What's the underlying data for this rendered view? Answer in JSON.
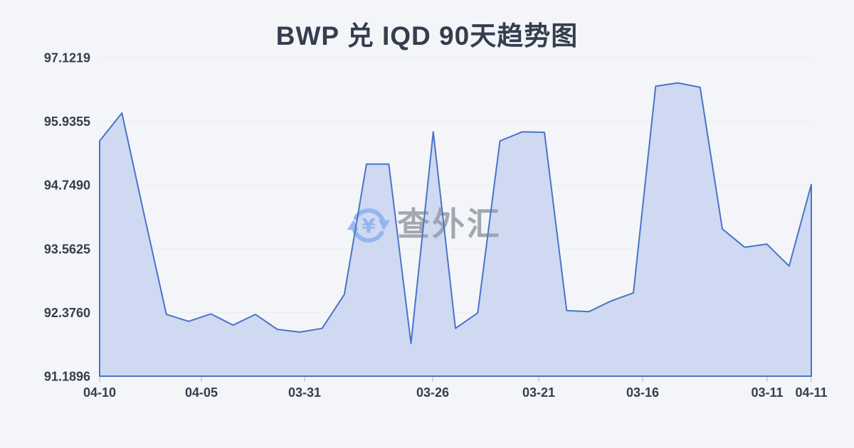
{
  "page": {
    "background": "#f4f5f8",
    "text_color": "#343e4e"
  },
  "header": {
    "title": "BWP 兑 IQD 90天趋势图"
  },
  "watermark": {
    "text": "查外汇",
    "icon": "currency-exchange-refresh-yen-icon",
    "icon_color": "#92b3ee",
    "text_color": "#9aa0aa",
    "yen_symbol": "¥"
  },
  "chart_data": {
    "type": "area",
    "title": "BWP 兑 IQD 90天趋势图",
    "xlabel": "",
    "ylabel": "",
    "grid": true,
    "legend": "none",
    "ylim": [
      91.1896,
      97.1219
    ],
    "y_ticks": [
      "97.1219",
      "95.9355",
      "94.7490",
      "93.5625",
      "92.3760",
      "91.1896"
    ],
    "x_ticks": [
      {
        "label": "04-10",
        "pos": 0.0
      },
      {
        "label": "04-05",
        "pos": 0.143
      },
      {
        "label": "03-31",
        "pos": 0.288
      },
      {
        "label": "03-26",
        "pos": 0.468
      },
      {
        "label": "03-21",
        "pos": 0.617
      },
      {
        "label": "03-16",
        "pos": 0.763
      },
      {
        "label": "03-11",
        "pos": 0.938
      },
      {
        "label": "04-11",
        "pos": 1.0
      }
    ],
    "series": [
      {
        "name": "BWP/IQD",
        "values": [
          95.57,
          96.09,
          94.2,
          92.34,
          92.21,
          92.35,
          92.14,
          92.34,
          92.06,
          92.01,
          92.08,
          92.71,
          95.14,
          95.14,
          91.8,
          95.74,
          92.08,
          92.37,
          95.57,
          95.74,
          95.73,
          92.41,
          92.39,
          92.59,
          92.74,
          96.59,
          96.65,
          96.57,
          93.93,
          93.59,
          93.65,
          93.24,
          94.76
        ]
      }
    ],
    "line_color": "#4a74c9",
    "fill_color": "#cfd9f1",
    "grid_color": "#e9ebef",
    "tick_color": "#c8cdd7",
    "text_color": "#343e4e"
  }
}
